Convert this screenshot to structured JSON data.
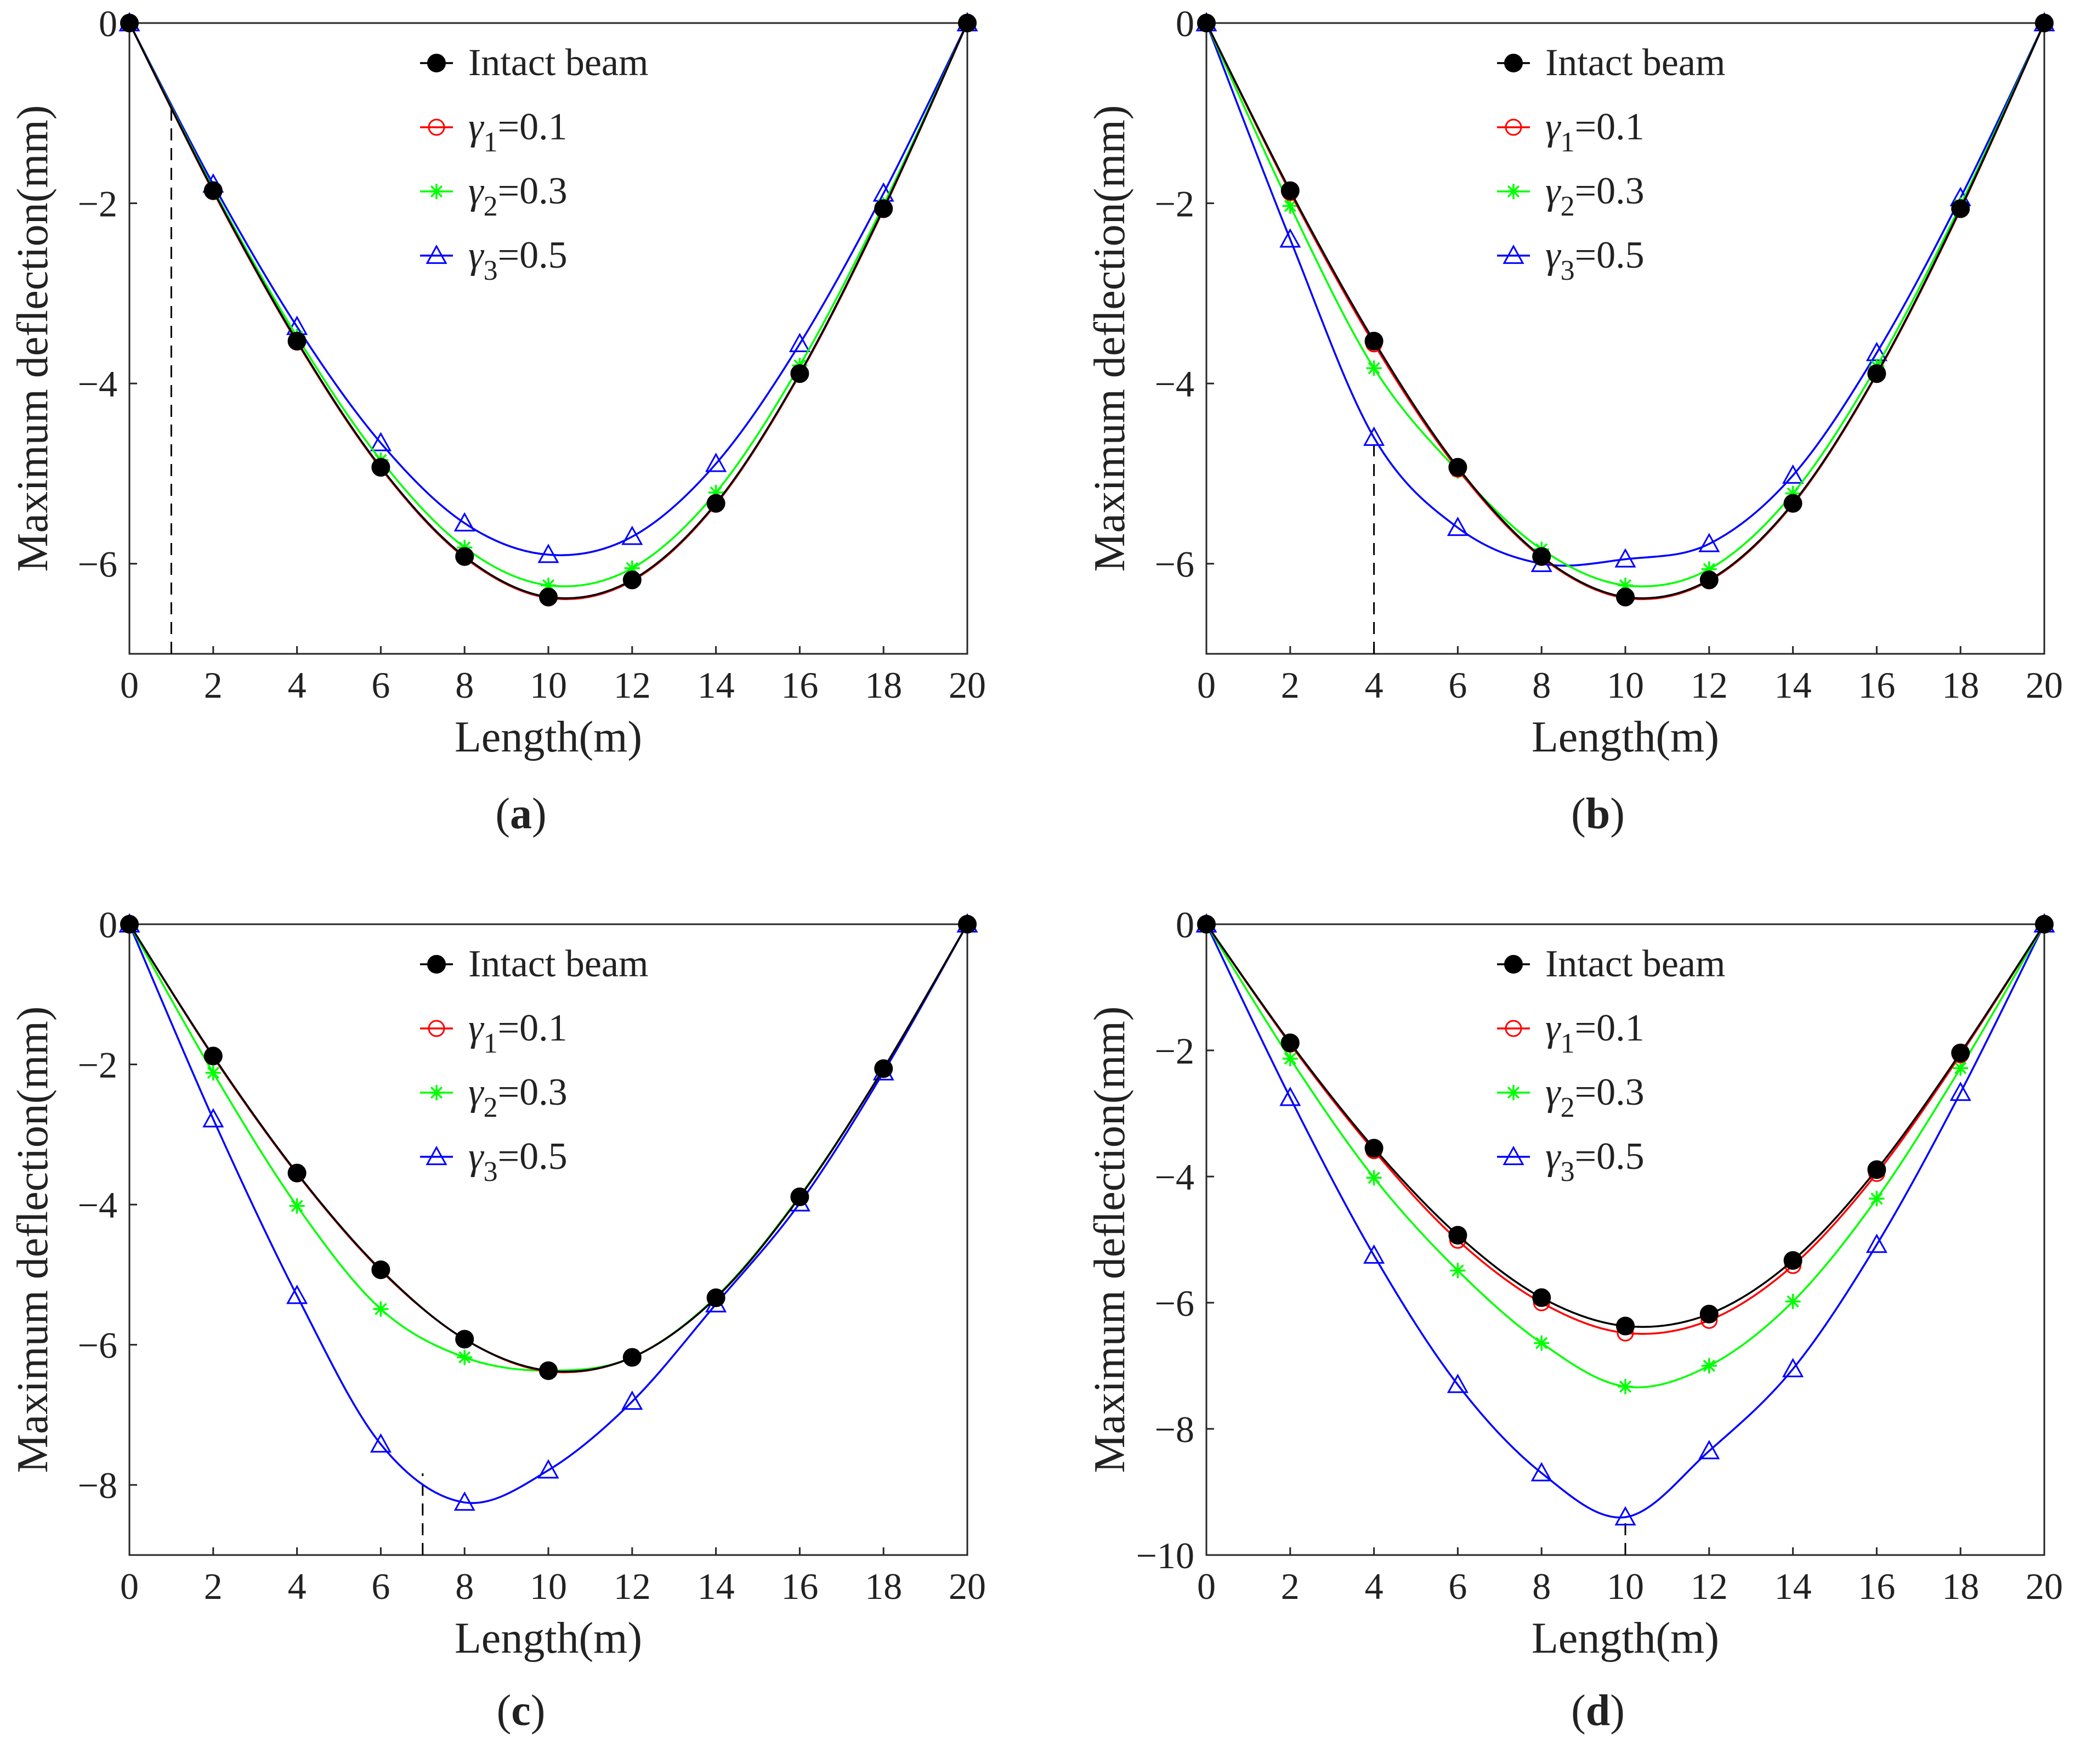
{
  "chart_data": [
    {
      "panel": "a",
      "type": "line",
      "xlabel": "Length(m)",
      "ylabel": "Maximum deflection(mm)",
      "xlim": [
        0,
        20
      ],
      "ylim": [
        -7,
        0
      ],
      "xticks": [
        0,
        2,
        4,
        6,
        8,
        10,
        12,
        14,
        16,
        18,
        20
      ],
      "yticks": [
        0,
        -2,
        -4,
        -6
      ],
      "ytick_labels": [
        "0",
        "−2",
        "−4",
        "−6"
      ],
      "damage_location": 1,
      "x": [
        0,
        2,
        4,
        6,
        8,
        10,
        12,
        14,
        16,
        18,
        20
      ],
      "series": [
        {
          "name": "Intact beam",
          "marker": "filled-circle",
          "color": "#000000",
          "values": [
            0,
            -1.86,
            -3.53,
            -4.93,
            -5.92,
            -6.37,
            -6.18,
            -5.33,
            -3.89,
            -2.06,
            0
          ]
        },
        {
          "name": "γ1=0.1",
          "marker": "open-circle",
          "color": "#ff0000",
          "values": [
            0,
            -1.87,
            -3.54,
            -4.94,
            -5.93,
            -6.38,
            -6.19,
            -5.34,
            -3.9,
            -2.07,
            0
          ]
        },
        {
          "name": "γ2=0.3",
          "marker": "asterisk",
          "color": "#00ff00",
          "values": [
            0,
            -1.84,
            -3.48,
            -4.85,
            -5.82,
            -6.24,
            -6.05,
            -5.21,
            -3.8,
            -2.02,
            0
          ]
        },
        {
          "name": "γ3=0.5",
          "marker": "open-triangle",
          "color": "#0000ff",
          "values": [
            0,
            -1.79,
            -3.37,
            -4.66,
            -5.55,
            -5.9,
            -5.7,
            -4.89,
            -3.56,
            -1.89,
            0
          ]
        }
      ],
      "caption": "a"
    },
    {
      "panel": "b",
      "type": "line",
      "xlabel": "Length(m)",
      "ylabel": "Maximum deflection(mm)",
      "xlim": [
        0,
        20
      ],
      "ylim": [
        -7,
        0
      ],
      "xticks": [
        0,
        2,
        4,
        6,
        8,
        10,
        12,
        14,
        16,
        18,
        20
      ],
      "yticks": [
        0,
        -2,
        -4,
        -6
      ],
      "ytick_labels": [
        "0",
        "−2",
        "−4",
        "−6"
      ],
      "damage_location": 4,
      "x": [
        0,
        2,
        4,
        6,
        8,
        10,
        12,
        14,
        16,
        18,
        20
      ],
      "series": [
        {
          "name": "Intact beam",
          "marker": "filled-circle",
          "color": "#000000",
          "values": [
            0,
            -1.86,
            -3.53,
            -4.93,
            -5.92,
            -6.37,
            -6.18,
            -5.33,
            -3.89,
            -2.06,
            0
          ]
        },
        {
          "name": "γ1=0.1",
          "marker": "open-circle",
          "color": "#ff0000",
          "values": [
            0,
            -1.88,
            -3.56,
            -4.95,
            -5.93,
            -6.38,
            -6.19,
            -5.34,
            -3.9,
            -2.07,
            0
          ]
        },
        {
          "name": "γ2=0.3",
          "marker": "asterisk",
          "color": "#00ff00",
          "values": [
            0,
            -2.03,
            -3.83,
            -4.97,
            -5.84,
            -6.24,
            -6.06,
            -5.22,
            -3.81,
            -2.02,
            0
          ]
        },
        {
          "name": "γ3=0.5",
          "marker": "open-triangle",
          "color": "#0000ff",
          "values": [
            0,
            -2.4,
            -4.6,
            -5.6,
            -6.0,
            -5.95,
            -5.78,
            -5.02,
            -3.66,
            -1.94,
            0
          ]
        }
      ],
      "caption": "b"
    },
    {
      "panel": "c",
      "type": "line",
      "xlabel": "Length(m)",
      "ylabel": "Maximum deflection(mm)",
      "xlim": [
        0,
        20
      ],
      "ylim": [
        -9,
        0
      ],
      "xticks": [
        0,
        2,
        4,
        6,
        8,
        10,
        12,
        14,
        16,
        18,
        20
      ],
      "yticks": [
        0,
        -2,
        -4,
        -6,
        -8
      ],
      "ytick_labels": [
        "0",
        "−2",
        "−4",
        "−6",
        "−8"
      ],
      "damage_location": 7,
      "x": [
        0,
        2,
        4,
        6,
        8,
        10,
        12,
        14,
        16,
        18,
        20
      ],
      "series": [
        {
          "name": "Intact beam",
          "marker": "filled-circle",
          "color": "#000000",
          "values": [
            0,
            -1.88,
            -3.55,
            -4.93,
            -5.92,
            -6.37,
            -6.18,
            -5.33,
            -3.89,
            -2.06,
            0
          ]
        },
        {
          "name": "γ1=0.1",
          "marker": "open-circle",
          "color": "#ff0000",
          "values": [
            0,
            -1.89,
            -3.56,
            -4.94,
            -5.92,
            -6.38,
            -6.18,
            -5.33,
            -3.89,
            -2.06,
            0
          ]
        },
        {
          "name": "γ2=0.3",
          "marker": "asterisk",
          "color": "#00ff00",
          "values": [
            0,
            -2.12,
            -4.02,
            -5.49,
            -6.18,
            -6.37,
            -6.18,
            -5.32,
            -3.88,
            -2.06,
            0
          ]
        },
        {
          "name": "γ3=0.5",
          "marker": "open-triangle",
          "color": "#0000ff",
          "values": [
            0,
            -2.78,
            -5.3,
            -7.42,
            -8.25,
            -7.79,
            -6.81,
            -5.42,
            -3.98,
            -2.11,
            0
          ]
        }
      ],
      "caption": "c"
    },
    {
      "panel": "d",
      "type": "line",
      "xlabel": "Length(m)",
      "ylabel": "Maximum deflection(mm)",
      "xlim": [
        0,
        20
      ],
      "ylim": [
        -10,
        0
      ],
      "xticks": [
        0,
        2,
        4,
        6,
        8,
        10,
        12,
        14,
        16,
        18,
        20
      ],
      "yticks": [
        0,
        -2,
        -4,
        -6,
        -8,
        -10
      ],
      "ytick_labels": [
        "0",
        "−2",
        "−4",
        "−6",
        "−8",
        "−10"
      ],
      "damage_location": 10,
      "x": [
        0,
        2,
        4,
        6,
        8,
        10,
        12,
        14,
        16,
        18,
        20
      ],
      "series": [
        {
          "name": "Intact beam",
          "marker": "filled-circle",
          "color": "#000000",
          "values": [
            0,
            -1.88,
            -3.55,
            -4.93,
            -5.92,
            -6.37,
            -6.18,
            -5.33,
            -3.89,
            -2.04,
            0
          ]
        },
        {
          "name": "γ1=0.1",
          "marker": "open-circle",
          "color": "#ff0000",
          "values": [
            0,
            -1.9,
            -3.59,
            -5.01,
            -6.0,
            -6.48,
            -6.28,
            -5.41,
            -3.95,
            -2.07,
            0
          ]
        },
        {
          "name": "γ2=0.3",
          "marker": "asterisk",
          "color": "#00ff00",
          "values": [
            0,
            -2.13,
            -4.02,
            -5.49,
            -6.64,
            -7.33,
            -7.0,
            -5.98,
            -4.35,
            -2.28,
            0
          ]
        },
        {
          "name": "γ3=0.5",
          "marker": "open-triangle",
          "color": "#0000ff",
          "values": [
            0,
            -2.75,
            -5.25,
            -7.3,
            -8.7,
            -9.4,
            -8.35,
            -7.05,
            -5.08,
            -2.67,
            0
          ]
        }
      ],
      "caption": "d"
    }
  ],
  "legend": {
    "intact_label": "Intact beam",
    "gamma_symbol": "γ",
    "entries": [
      {
        "sub": "1",
        "value": "=0.1"
      },
      {
        "sub": "2",
        "value": "=0.3"
      },
      {
        "sub": "3",
        "value": "=0.5"
      }
    ]
  }
}
